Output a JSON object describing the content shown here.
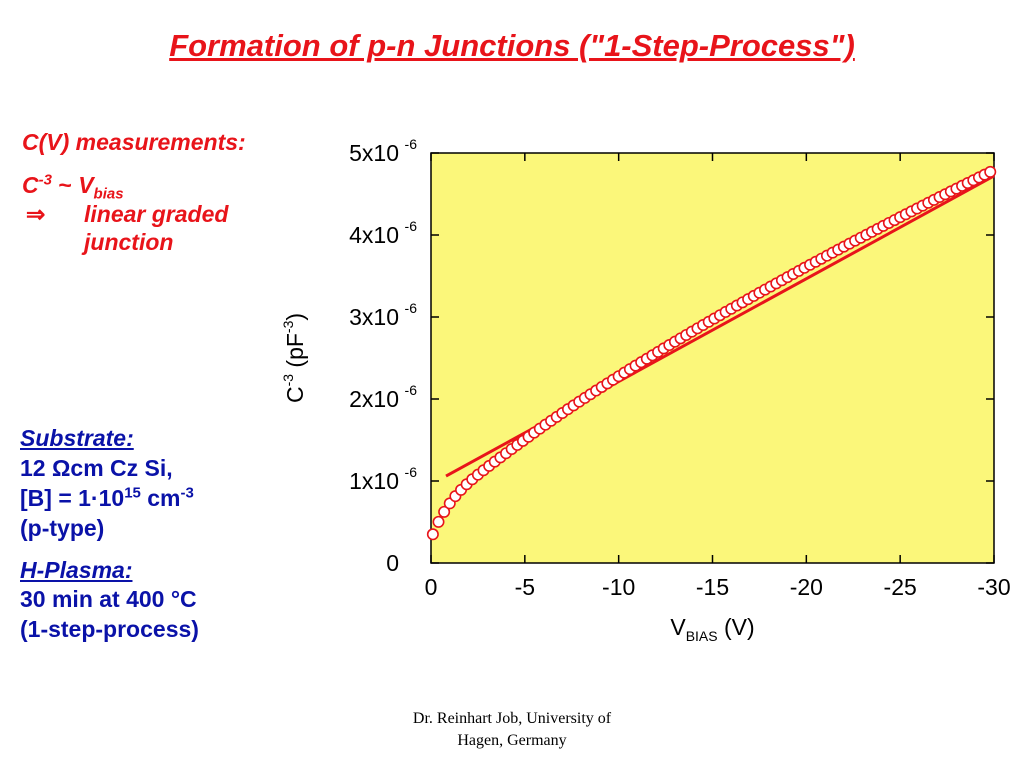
{
  "slide": {
    "title": "Formation of p-n Junctions (\"1-Step-Process\")",
    "footer_line1": "Dr. Reinhart Job, University of",
    "footer_line2": "Hagen, Germany"
  },
  "notes": {
    "measure_c": "C",
    "measure_rest": "(V) measurements:",
    "relation_c": "C",
    "relation_exp": "-3",
    "relation_tilde": " ~ ",
    "relation_v": "V",
    "relation_sub": "bias",
    "implies_symbol": "⇒",
    "implies_text": "linear graded",
    "implies_text2": "junction",
    "substrate_head": "Substrate:",
    "substrate_line1": "12 Ωcm Cz Si,",
    "substrate_line2_a": "[B] = 1·10",
    "substrate_line2_exp": "15",
    "substrate_line2_b": " cm",
    "substrate_line2_exp2": "-3",
    "substrate_line3": "(p-type)",
    "plasma_head": "H-Plasma:",
    "plasma_line1": "30 min at 400 °C",
    "plasma_line2": "(1-step-process)"
  },
  "colors": {
    "title": "#e8141a",
    "red_text": "#e8141a",
    "blue_text": "#0a12a8",
    "plot_bg": "#fbf77a",
    "fit_line": "#e8141a",
    "marker_edge": "#e8141a"
  },
  "chart_data": {
    "type": "scatter",
    "xlabel_main": "V",
    "xlabel_sub": "BIAS",
    "xlabel_unit": " (V)",
    "ylabel_main": "C",
    "ylabel_exp": "-3",
    "ylabel_unit": " (pF",
    "ylabel_unit_exp": "-3",
    "ylabel_close": ")",
    "xlim": [
      0,
      -30
    ],
    "ylim": [
      0,
      5e-06
    ],
    "x_ticks": [
      {
        "value": 0,
        "label": "0"
      },
      {
        "value": -5,
        "label": "-5"
      },
      {
        "value": -10,
        "label": "-10"
      },
      {
        "value": -15,
        "label": "-15"
      },
      {
        "value": -20,
        "label": "-20"
      },
      {
        "value": -25,
        "label": "-25"
      },
      {
        "value": -30,
        "label": "-30"
      }
    ],
    "y_ticks": [
      {
        "value": 0,
        "label": "0",
        "exp": ""
      },
      {
        "value": 1e-06,
        "label": "1x10",
        "exp": "-6"
      },
      {
        "value": 2e-06,
        "label": "2x10",
        "exp": "-6"
      },
      {
        "value": 3e-06,
        "label": "3x10",
        "exp": "-6"
      },
      {
        "value": 4e-06,
        "label": "4x10",
        "exp": "-6"
      },
      {
        "value": 5e-06,
        "label": "5x10",
        "exp": "-6"
      }
    ],
    "series": [
      {
        "marker": "open-circle",
        "x": [
          -0.1,
          -0.4,
          -0.7,
          -1.0,
          -1.3,
          -1.6,
          -1.9,
          -2.2,
          -2.5,
          -2.8,
          -3.1,
          -3.4,
          -3.7,
          -4.0,
          -4.3,
          -4.6,
          -4.9,
          -5.2,
          -5.5,
          -5.8,
          -6.1,
          -6.4,
          -6.7,
          -7.0,
          -7.3,
          -7.6,
          -7.9,
          -8.2,
          -8.5,
          -8.8,
          -9.1,
          -9.4,
          -9.7,
          -10.0,
          -10.3,
          -10.6,
          -10.9,
          -11.2,
          -11.5,
          -11.8,
          -12.1,
          -12.4,
          -12.7,
          -13.0,
          -13.3,
          -13.6,
          -13.9,
          -14.2,
          -14.5,
          -14.8,
          -15.1,
          -15.4,
          -15.7,
          -16.0,
          -16.3,
          -16.6,
          -16.9,
          -17.2,
          -17.5,
          -17.8,
          -18.1,
          -18.4,
          -18.7,
          -19.0,
          -19.3,
          -19.6,
          -19.9,
          -20.2,
          -20.5,
          -20.8,
          -21.1,
          -21.4,
          -21.7,
          -22.0,
          -22.3,
          -22.6,
          -22.9,
          -23.2,
          -23.5,
          -23.8,
          -24.1,
          -24.4,
          -24.7,
          -25.0,
          -25.3,
          -25.6,
          -25.9,
          -26.2,
          -26.5,
          -26.8,
          -27.1,
          -27.4,
          -27.7,
          -28.0,
          -28.3,
          -28.6,
          -28.9,
          -29.2,
          -29.5,
          -29.8
        ],
        "y": [
          3.5e-07,
          5.02e-07,
          6.24e-07,
          7.27e-07,
          8.15e-07,
          8.92e-07,
          9.6e-07,
          1.021e-06,
          1.077e-06,
          1.131e-06,
          1.184e-06,
          1.236e-06,
          1.288e-06,
          1.339e-06,
          1.39e-06,
          1.44e-06,
          1.49e-06,
          1.54e-06,
          1.59e-06,
          1.639e-06,
          1.687e-06,
          1.735e-06,
          1.782e-06,
          1.829e-06,
          1.876e-06,
          1.922e-06,
          1.968e-06,
          2.013e-06,
          2.058e-06,
          2.103e-06,
          2.147e-06,
          2.191e-06,
          2.235e-06,
          2.278e-06,
          2.321e-06,
          2.364e-06,
          2.407e-06,
          2.449e-06,
          2.491e-06,
          2.533e-06,
          2.575e-06,
          2.617e-06,
          2.658e-06,
          2.699e-06,
          2.74e-06,
          2.781e-06,
          2.822e-06,
          2.862e-06,
          2.902e-06,
          2.942e-06,
          2.982e-06,
          3.022e-06,
          3.062e-06,
          3.101e-06,
          3.14e-06,
          3.179e-06,
          3.218e-06,
          3.257e-06,
          3.296e-06,
          3.334e-06,
          3.372e-06,
          3.41e-06,
          3.448e-06,
          3.486e-06,
          3.524e-06,
          3.562e-06,
          3.6e-06,
          3.637e-06,
          3.674e-06,
          3.711e-06,
          3.748e-06,
          3.785e-06,
          3.822e-06,
          3.858e-06,
          3.895e-06,
          3.931e-06,
          3.967e-06,
          4.003e-06,
          4.039e-06,
          4.075e-06,
          4.111e-06,
          4.147e-06,
          4.182e-06,
          4.218e-06,
          4.253e-06,
          4.288e-06,
          4.323e-06,
          4.358e-06,
          4.393e-06,
          4.428e-06,
          4.463e-06,
          4.497e-06,
          4.532e-06,
          4.566e-06,
          4.6e-06,
          4.634e-06,
          4.668e-06,
          4.702e-06,
          4.736e-06,
          4.77e-06
        ]
      },
      {
        "marker": "line",
        "x": [
          -0.8,
          -30
        ],
        "y": [
          1.06e-06,
          4.72e-06
        ]
      }
    ],
    "grid": false,
    "legend": "none"
  }
}
